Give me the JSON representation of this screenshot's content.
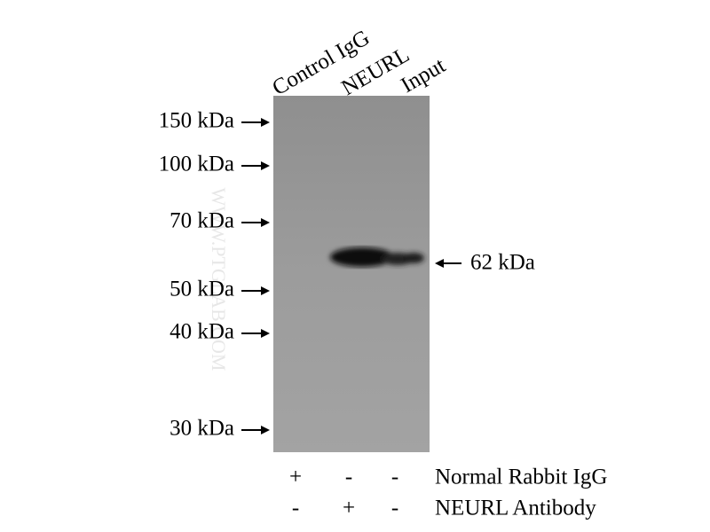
{
  "lanes": [
    "Control IgG",
    "NEURL",
    "Input"
  ],
  "markers": [
    "150 kDa",
    "100 kDa",
    "70 kDa",
    "50 kDa",
    "40 kDa",
    "30 kDa"
  ],
  "band_label": "62 kDa",
  "watermark": "WWW.PTGLAB.COM",
  "conditions": [
    {
      "label": "Normal Rabbit IgG",
      "signs": [
        "+",
        "-",
        "-"
      ]
    },
    {
      "label": "NEURL Antibody",
      "signs": [
        "-",
        "+",
        "-"
      ]
    }
  ]
}
